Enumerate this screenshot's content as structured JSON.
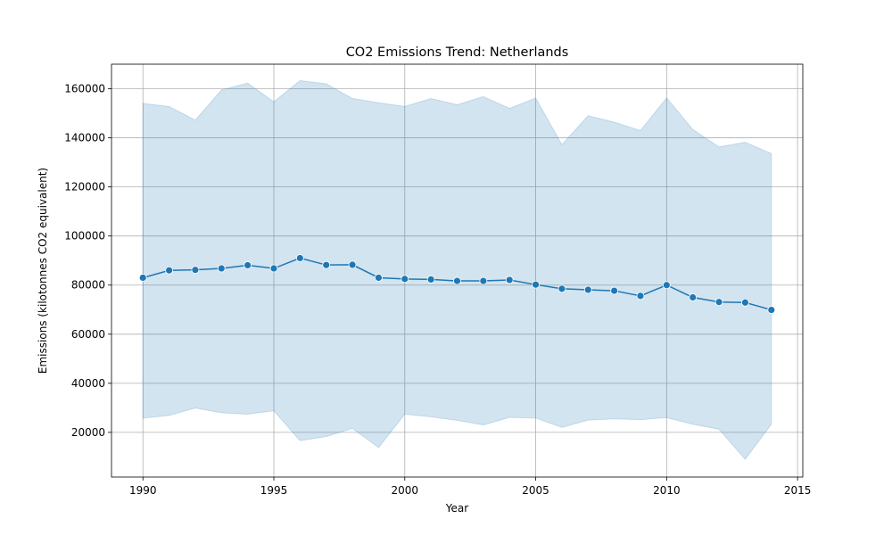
{
  "chart_data": {
    "type": "line",
    "title": "CO2 Emissions Trend: Netherlands",
    "xlabel": "Year",
    "ylabel": "Emissions (kilotonnes CO2 equivalent)",
    "xlim": [
      1988.8,
      2015.2
    ],
    "ylim": [
      1800,
      170000
    ],
    "x_ticks": [
      1990,
      1995,
      2000,
      2005,
      2010,
      2015
    ],
    "y_ticks": [
      20000,
      40000,
      60000,
      80000,
      100000,
      120000,
      140000,
      160000
    ],
    "grid": true,
    "colors": {
      "line": "#1f77b4",
      "band": "#1f77b4",
      "grid": "#b0b0b0"
    },
    "series": [
      {
        "x": [
          1990,
          1991,
          1992,
          1993,
          1994,
          1995,
          1996,
          1997,
          1998,
          1999,
          2000,
          2001,
          2002,
          2003,
          2004,
          2005,
          2006,
          2007,
          2008,
          2009,
          2010,
          2011,
          2012,
          2013,
          2014
        ],
        "values": [
          83000,
          86000,
          86200,
          86800,
          88100,
          86800,
          91000,
          88200,
          88300,
          83000,
          82500,
          82300,
          81700,
          81700,
          82100,
          80200,
          78500,
          78100,
          77700,
          75600,
          80000,
          75000,
          73100,
          72900,
          69900
        ],
        "band_upper": [
          154000,
          152800,
          147200,
          159500,
          162300,
          154700,
          163300,
          162000,
          156000,
          154300,
          152800,
          156000,
          153500,
          156800,
          152000,
          156200,
          137200,
          149000,
          146400,
          143000,
          156300,
          143400,
          136300,
          138200,
          133600
        ],
        "band_lower": [
          25800,
          26900,
          29900,
          28000,
          27400,
          28800,
          16600,
          18300,
          21600,
          13800,
          27400,
          26300,
          24900,
          23000,
          26100,
          25800,
          22000,
          25000,
          25500,
          25200,
          26000,
          23300,
          21300,
          9000,
          23300
        ]
      }
    ]
  }
}
